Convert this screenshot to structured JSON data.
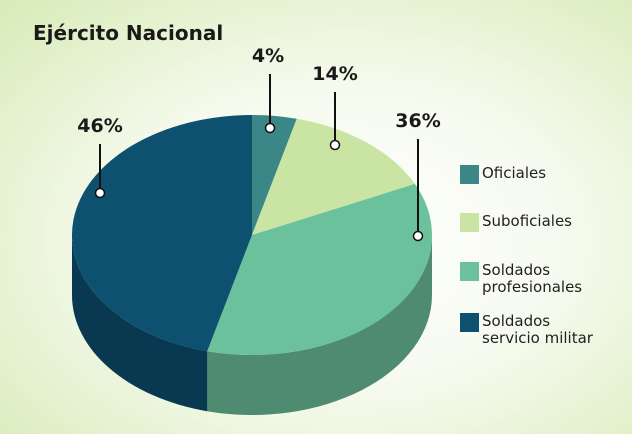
{
  "chart_data": {
    "type": "pie3d",
    "title": "Ejército Nacional",
    "categories": [
      "Oficiales",
      "Suboficiales",
      "Soldados profesionales",
      "Soldados servicio militar"
    ],
    "values": [
      4,
      14,
      36,
      46
    ],
    "value_labels": [
      "4%",
      "14%",
      "36%",
      "46%"
    ],
    "colors": [
      "#3b8686",
      "#c9e4a3",
      "#6cc19d",
      "#0d5070"
    ],
    "legend": "right"
  }
}
